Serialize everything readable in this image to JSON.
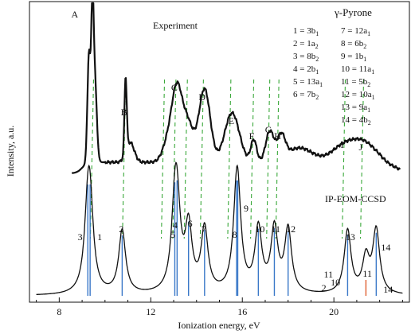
{
  "chart_data": {
    "type": "line",
    "xlabel": "Ionization energy, eV",
    "ylabel": "Intensity, a.u.",
    "xlim": [
      6.7,
      23.3
    ],
    "xticks": [
      8,
      12,
      16,
      20
    ],
    "xtick_labels": [
      "8",
      "12",
      "16",
      "20"
    ],
    "title": "γ-Pyrone",
    "experiment_label": "Experiment",
    "theory_label": "IP-EOM-CCSD",
    "legend_lines": [
      {
        "left": "1 = 3b",
        "left_sub": "1",
        "right": "7 = 12a",
        "right_sub": "1"
      },
      {
        "left": "2 = 1a",
        "left_sub": "2",
        "right": "8 = 6b",
        "right_sub": "2"
      },
      {
        "left": "3 = 8b",
        "left_sub": "2",
        "right": "9 = 1b",
        "right_sub": "1"
      },
      {
        "left": "4 = 2b",
        "left_sub": "1",
        "right": "10 = 11a",
        "right_sub": "1"
      },
      {
        "left": "5 = 13a",
        "left_sub": "1",
        "right": "11 = 5b",
        "right_sub": "2"
      },
      {
        "left": "6 = 7b",
        "left_sub": "2",
        "right": "12 = 10a",
        "right_sub": "1"
      },
      {
        "left": "",
        "left_sub": "",
        "right": "13 = 9a",
        "right_sub": "1"
      },
      {
        "left": "",
        "left_sub": "",
        "right": "14 = 4b",
        "right_sub": "2"
      }
    ],
    "experiment_bands": [
      {
        "label": "A",
        "x": 9.5
      },
      {
        "label": "B",
        "x": 10.9
      },
      {
        "label": "C",
        "x": 13.1
      },
      {
        "label": "D",
        "x": 14.3
      },
      {
        "label": "E",
        "x": 15.6
      },
      {
        "label": "F",
        "x": 16.5
      },
      {
        "label": "G",
        "x": 17.2
      },
      {
        "label": "H",
        "x": 17.6
      },
      {
        "label": "I",
        "x": 20.5
      },
      {
        "label": "J",
        "x": 21.3
      }
    ],
    "assignment_lines_x": [
      9.5,
      10.9,
      12.6,
      13.1,
      13.6,
      14.3,
      15.5,
      16.5,
      17.2,
      17.6,
      20.5,
      21.3
    ],
    "calculated_peaks": [
      {
        "x": 9.25,
        "intensity": 0.6,
        "color": "#3a78c8"
      },
      {
        "x": 9.35,
        "intensity": 0.6,
        "color": "#3a78c8"
      },
      {
        "x": 10.75,
        "intensity": 0.55,
        "color": "#3a78c8"
      },
      {
        "x": 13.05,
        "intensity": 0.58,
        "color": "#3a78c8"
      },
      {
        "x": 13.15,
        "intensity": 0.58,
        "color": "#3a78c8"
      },
      {
        "x": 13.65,
        "intensity": 0.55,
        "color": "#3a78c8"
      },
      {
        "x": 14.35,
        "intensity": 0.55,
        "color": "#3a78c8"
      },
      {
        "x": 15.75,
        "intensity": 0.55,
        "color": "#3a78c8"
      },
      {
        "x": 15.8,
        "intensity": 0.55,
        "color": "#3a78c8"
      },
      {
        "x": 16.7,
        "intensity": 0.55,
        "color": "#3a78c8"
      },
      {
        "x": 17.4,
        "intensity": 0.55,
        "color": "#3a78c8"
      },
      {
        "x": 18.0,
        "intensity": 0.55,
        "color": "#3a78c8"
      },
      {
        "x": 20.6,
        "intensity": 0.55,
        "color": "#3a78c8"
      },
      {
        "x": 21.4,
        "intensity": 0.3,
        "color": "#e06030"
      },
      {
        "x": 21.85,
        "intensity": 0.55,
        "color": "#3a78c8"
      }
    ],
    "peak_labels": [
      {
        "text": "3",
        "x": 8.95
      },
      {
        "text": "1",
        "x": 9.8
      },
      {
        "text": "2",
        "x": 10.75
      },
      {
        "text": "4",
        "x": 13.1
      },
      {
        "text": "5",
        "x": 13.0
      },
      {
        "text": "6",
        "x": 13.75
      },
      {
        "text": "7",
        "x": 14.35
      },
      {
        "text": "8",
        "x": 15.7
      },
      {
        "text": "9",
        "x": 16.2
      },
      {
        "text": "10",
        "x": 16.7
      },
      {
        "text": "11",
        "x": 17.4
      },
      {
        "text": "12",
        "x": 18.05
      },
      {
        "text": "13",
        "x": 20.65
      },
      {
        "text": "14",
        "x": 22.2
      },
      {
        "text": "11",
        "x": 21.4
      },
      {
        "text": "11",
        "x": 19.7
      },
      {
        "text": "10",
        "x": 20.0
      },
      {
        "text": "2",
        "x": 19.6
      },
      {
        "text": "14",
        "x": 22.3
      }
    ],
    "grid": false,
    "series": [
      {
        "name": "Experiment",
        "color": "#111111"
      },
      {
        "name": "IP-EOM-CCSD",
        "color": "#111111"
      }
    ]
  }
}
